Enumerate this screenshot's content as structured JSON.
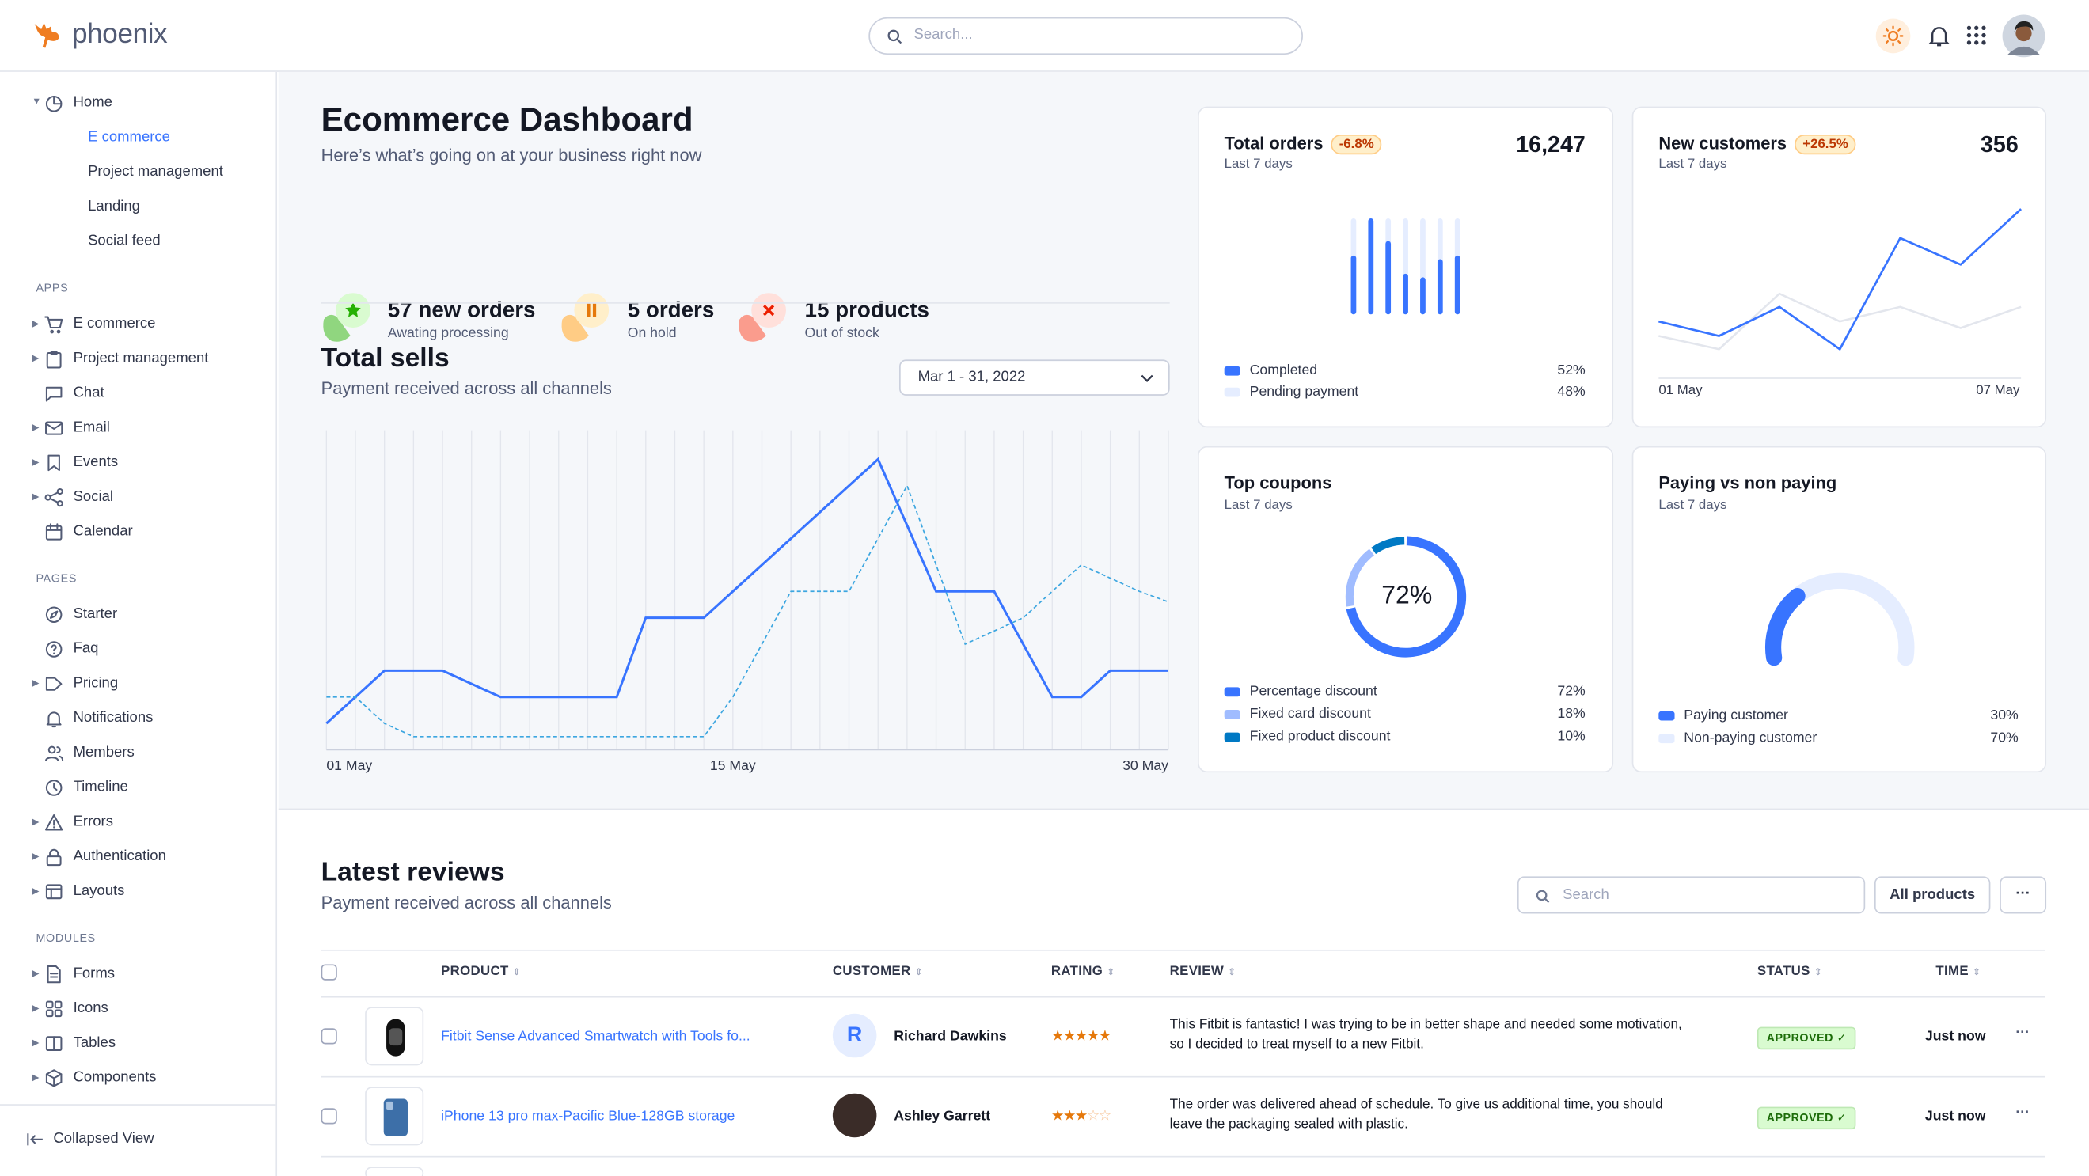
{
  "header": {
    "brand": "phoenix",
    "search_placeholder": "Search...",
    "accent": "#ef7d22",
    "icons": [
      "sun-icon",
      "bell-icon",
      "apps-grid-icon",
      "user-avatar"
    ]
  },
  "sidebar": {
    "home": {
      "label": "Home",
      "icon": "pie-chart-icon",
      "children": [
        "E commerce",
        "Project management",
        "Landing",
        "Social feed"
      ],
      "active": "E commerce"
    },
    "sections": [
      {
        "label": "APPS",
        "items": [
          {
            "label": "E commerce",
            "icon": "cart-icon",
            "caret": true
          },
          {
            "label": "Project management",
            "icon": "clipboard-icon",
            "caret": true
          },
          {
            "label": "Chat",
            "icon": "chat-icon",
            "caret": false
          },
          {
            "label": "Email",
            "icon": "mail-icon",
            "caret": true
          },
          {
            "label": "Events",
            "icon": "bookmark-icon",
            "caret": true
          },
          {
            "label": "Social",
            "icon": "share-icon",
            "caret": true
          },
          {
            "label": "Calendar",
            "icon": "calendar-icon",
            "caret": false
          }
        ]
      },
      {
        "label": "PAGES",
        "items": [
          {
            "label": "Starter",
            "icon": "compass-icon",
            "caret": false
          },
          {
            "label": "Faq",
            "icon": "help-circle-icon",
            "caret": false
          },
          {
            "label": "Pricing",
            "icon": "tag-icon",
            "caret": true
          },
          {
            "label": "Notifications",
            "icon": "bell-icon",
            "caret": false
          },
          {
            "label": "Members",
            "icon": "users-icon",
            "caret": false
          },
          {
            "label": "Timeline",
            "icon": "clock-icon",
            "caret": false
          },
          {
            "label": "Errors",
            "icon": "alert-triangle-icon",
            "caret": true
          },
          {
            "label": "Authentication",
            "icon": "lock-icon",
            "caret": true
          },
          {
            "label": "Layouts",
            "icon": "layout-icon",
            "caret": true
          }
        ]
      },
      {
        "label": "MODULES",
        "items": [
          {
            "label": "Forms",
            "icon": "file-text-icon",
            "caret": true
          },
          {
            "label": "Icons",
            "icon": "grid-icon",
            "caret": true
          },
          {
            "label": "Tables",
            "icon": "columns-icon",
            "caret": true
          },
          {
            "label": "Components",
            "icon": "package-icon",
            "caret": true
          }
        ]
      }
    ],
    "collapse_label": "Collapsed View"
  },
  "page": {
    "title": "Ecommerce Dashboard",
    "subtitle": "Here’s what’s going on at your business right now",
    "stats": [
      {
        "value": "57 new orders",
        "desc": "Awating processing",
        "icon": "star-icon",
        "color": "#25b003",
        "bg": "#d9fbd0",
        "blob": "#90d67f"
      },
      {
        "value": "5 orders",
        "desc": "On hold",
        "icon": "pause-icon",
        "color": "#e5780b",
        "bg": "#ffefca",
        "blob": "#ffcc85"
      },
      {
        "value": "15 products",
        "desc": "Out of stock",
        "icon": "x-icon",
        "color": "#ec1f00",
        "bg": "#ffe0db",
        "blob": "#fa9c8d"
      }
    ]
  },
  "total_sells": {
    "title": "Total sells",
    "subtitle": "Payment received across all channels",
    "date_range": "Mar 1 - 31, 2022"
  },
  "chart_data": [
    {
      "type": "line",
      "x_tick_labels": [
        "01 May",
        "15 May",
        "30 May"
      ],
      "x": [
        1,
        2,
        3,
        4,
        5,
        6,
        7,
        8,
        9,
        10,
        11,
        12,
        13,
        14,
        15,
        16,
        17,
        18,
        19,
        20,
        21,
        22,
        23,
        24,
        25,
        26,
        27,
        28,
        29,
        30
      ],
      "series": [
        {
          "style": "solid",
          "color": "#3874ff",
          "values": [
            1,
            2,
            3,
            3,
            3,
            2.5,
            2,
            2,
            2,
            2,
            2,
            5,
            5,
            5,
            6,
            7,
            8,
            9,
            10,
            11,
            8.5,
            6,
            6,
            6,
            4,
            2,
            2,
            3,
            3,
            3
          ]
        },
        {
          "style": "dashed",
          "color": "#3ca6e0",
          "values": [
            2,
            2,
            1,
            0.5,
            0.5,
            0.5,
            0.5,
            0.5,
            0.5,
            0.5,
            0.5,
            0.5,
            0.5,
            0.5,
            2,
            4,
            6,
            6,
            6,
            8,
            10,
            7,
            4,
            4.5,
            5,
            6,
            7,
            6.5,
            6,
            5.6
          ]
        }
      ],
      "ylim": [
        0,
        12.1
      ],
      "grid": "vertical"
    },
    {
      "type": "bar",
      "title": "Total orders",
      "subtitle": "Last 7 days",
      "values_fraction": [
        0.59,
        1.0,
        0.75,
        0.39,
        0.35,
        0.55,
        0.59
      ],
      "colors": {
        "completed": "#3874ff",
        "pending": "#e5edff"
      }
    },
    {
      "type": "line",
      "title": "New customers",
      "x_tick_labels": [
        "01 May",
        "07 May"
      ],
      "series": [
        {
          "color": "#3874ff",
          "values": [
            21.5,
            16,
            27,
            11,
            53,
            43,
            64
          ]
        },
        {
          "color": "#e3e6ed",
          "values": [
            16,
            11,
            32,
            21.5,
            27,
            19,
            27
          ]
        }
      ],
      "ylim": [
        0,
        67
      ]
    },
    {
      "type": "pie",
      "title": "Top coupons",
      "center_label": "72%",
      "slices": [
        {
          "name": "Percentage discount",
          "value": 72,
          "color": "#3874ff"
        },
        {
          "name": "Fixed card discount",
          "value": 18,
          "color": "#a0bcff"
        },
        {
          "name": "Fixed product discount",
          "value": 10,
          "color": "#0079c4"
        }
      ]
    },
    {
      "type": "pie",
      "title": "Paying vs non paying",
      "slices": [
        {
          "name": "Paying customer",
          "value": 30,
          "color": "#3874ff"
        },
        {
          "name": "Non-paying customer",
          "value": 70,
          "color": "#e5edff"
        }
      ]
    }
  ],
  "cards": {
    "total_orders": {
      "title": "Total orders",
      "badge": "-6.8%",
      "value": "16,247",
      "period": "Last 7 days",
      "legend": [
        {
          "name": "Completed",
          "pct": "52%"
        },
        {
          "name": "Pending payment",
          "pct": "48%"
        }
      ]
    },
    "new_customers": {
      "title": "New customers",
      "badge": "+26.5%",
      "value": "356",
      "period": "Last 7 days",
      "x_start": "01 May",
      "x_end": "07 May"
    },
    "top_coupons": {
      "title": "Top coupons",
      "period": "Last 7 days",
      "center": "72%",
      "legend": [
        {
          "name": "Percentage discount",
          "pct": "72%"
        },
        {
          "name": "Fixed card discount",
          "pct": "18%"
        },
        {
          "name": "Fixed product discount",
          "pct": "10%"
        }
      ]
    },
    "paying": {
      "title": "Paying vs non paying",
      "period": "Last 7 days",
      "legend": [
        {
          "name": "Paying customer",
          "pct": "30%"
        },
        {
          "name": "Non-paying customer",
          "pct": "70%"
        }
      ]
    }
  },
  "reviews": {
    "title": "Latest reviews",
    "subtitle": "Payment received across all channels",
    "search_placeholder": "Search",
    "filter_label": "All products",
    "more_label": "···",
    "columns": [
      "PRODUCT",
      "CUSTOMER",
      "RATING",
      "REVIEW",
      "STATUS",
      "TIME"
    ],
    "rows": [
      {
        "product": "Fitbit Sense Advanced Smartwatch with Tools fo...",
        "customer": "Richard Dawkins",
        "avatar_initial": "R",
        "rating": 5,
        "review": [
          "This Fitbit is fantastic! I was trying to be in better shape and needed some motivation,",
          "so I decided to treat myself to a new Fitbit."
        ],
        "status": "APPROVED",
        "time": "Just now"
      },
      {
        "product": "iPhone 13 pro max-Pacific Blue-128GB storage",
        "customer": "Ashley Garrett",
        "avatar_initial": "",
        "rating": 3,
        "review": [
          "The order was delivered ahead of schedule. To give us additional time, you should",
          "leave the packaging sealed with plastic."
        ],
        "status": "APPROVED",
        "time": "Just now"
      }
    ]
  }
}
